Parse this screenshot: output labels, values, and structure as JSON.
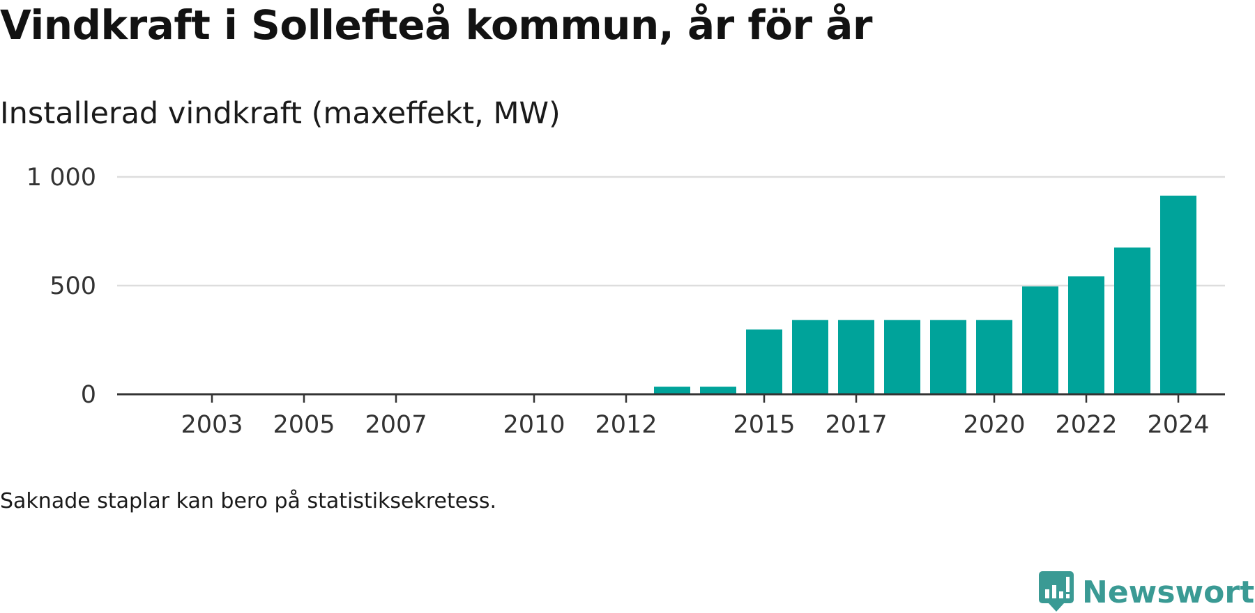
{
  "header": {
    "title": "Vindkraft i Sollefteå kommun, år för år",
    "subtitle": "Installerad vindkraft (maxeffekt, MW)"
  },
  "footnote": "Saknade staplar kan bero på statistiksekretess.",
  "brand": {
    "name": "Newsworthy",
    "color": "#3a9a94",
    "icon": "newsworthy-logo-icon"
  },
  "colors": {
    "bar": "#00a39a",
    "grid": "#dddddd",
    "axis": "#333333"
  },
  "chart_data": {
    "type": "bar",
    "x": [
      2002,
      2003,
      2004,
      2005,
      2006,
      2007,
      2008,
      2009,
      2010,
      2011,
      2012,
      2013,
      2014,
      2015,
      2016,
      2017,
      2018,
      2019,
      2020,
      2021,
      2022,
      2023,
      2024
    ],
    "values": [
      0,
      0,
      0,
      0,
      0,
      0,
      0,
      0,
      0,
      0,
      0,
      35,
      35,
      298,
      342,
      342,
      342,
      342,
      342,
      496,
      543,
      675,
      914
    ],
    "x_tick_labels": [
      "2003",
      "2005",
      "2007",
      "2010",
      "2012",
      "2015",
      "2017",
      "2020",
      "2022",
      "2024"
    ],
    "y_ticks": [
      0,
      500,
      1000
    ],
    "y_tick_labels": [
      "0",
      "500",
      "1 000"
    ],
    "ylim": [
      0,
      1000
    ],
    "grid": true,
    "legend": "none"
  }
}
